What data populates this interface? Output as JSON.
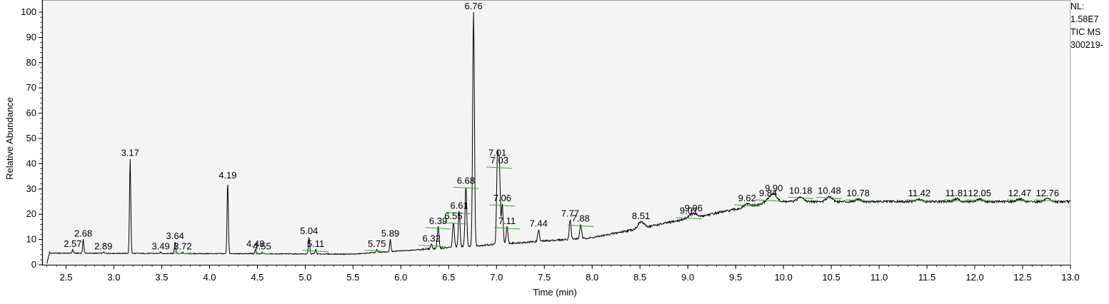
{
  "info": {
    "nl_label": "NL:",
    "nl_value": "1.58E7",
    "trace_type": "TIC MS",
    "file_name": "300219-"
  },
  "chart_data": {
    "type": "line",
    "title": "",
    "xlabel": "Time (min)",
    "ylabel": "Relative Abundance",
    "xlim": [
      2.25,
      13.0
    ],
    "ylim": [
      0,
      100
    ],
    "x_ticks": [
      "2.5",
      "3.0",
      "3.5",
      "4.0",
      "4.5",
      "5.0",
      "5.5",
      "6.0",
      "6.5",
      "7.0",
      "7.5",
      "8.0",
      "8.5",
      "9.0",
      "9.5",
      "10.0",
      "10.5",
      "11.0",
      "11.5",
      "12.0",
      "12.5",
      "13.0"
    ],
    "y_ticks": [
      "0",
      "10",
      "20",
      "30",
      "40",
      "50",
      "60",
      "70",
      "80",
      "90",
      "100"
    ],
    "grid": false,
    "color": "#000000",
    "peaks": [
      {
        "rt": 2.57,
        "label": "2.57",
        "height": 6
      },
      {
        "rt": 2.68,
        "label": "2.68",
        "height": 10
      },
      {
        "rt": 2.89,
        "label": "2.89",
        "height": 5
      },
      {
        "rt": 3.17,
        "label": "3.17",
        "height": 42
      },
      {
        "rt": 3.49,
        "label": "3.49",
        "height": 5
      },
      {
        "rt": 3.64,
        "label": "3.64",
        "height": 9
      },
      {
        "rt": 3.72,
        "label": "3.72",
        "height": 5
      },
      {
        "rt": 4.19,
        "label": "4.19",
        "height": 33
      },
      {
        "rt": 4.48,
        "label": "4.48",
        "height": 6
      },
      {
        "rt": 4.55,
        "label": "4.55",
        "height": 5
      },
      {
        "rt": 5.04,
        "label": "5.04",
        "height": 11
      },
      {
        "rt": 5.11,
        "label": "5.11",
        "height": 6
      },
      {
        "rt": 5.75,
        "label": "5.75",
        "height": 6
      },
      {
        "rt": 5.89,
        "label": "5.89",
        "height": 10
      },
      {
        "rt": 6.32,
        "label": "6.32",
        "height": 8
      },
      {
        "rt": 6.39,
        "label": "6.39",
        "height": 15
      },
      {
        "rt": 6.55,
        "label": "6.55",
        "height": 17
      },
      {
        "rt": 6.61,
        "label": "6.61",
        "height": 21
      },
      {
        "rt": 6.68,
        "label": "6.68",
        "height": 31
      },
      {
        "rt": 6.76,
        "label": "6.76",
        "height": 100
      },
      {
        "rt": 7.01,
        "label": "7.01",
        "height": 42
      },
      {
        "rt": 7.03,
        "label": "7.03",
        "height": 39
      },
      {
        "rt": 7.06,
        "label": "7.06",
        "height": 24
      },
      {
        "rt": 7.11,
        "label": "7.11",
        "height": 15
      },
      {
        "rt": 7.44,
        "label": "7.44",
        "height": 14
      },
      {
        "rt": 7.77,
        "label": "7.77",
        "height": 18
      },
      {
        "rt": 7.88,
        "label": "7.88",
        "height": 16
      },
      {
        "rt": 8.51,
        "label": "8.51",
        "height": 17
      },
      {
        "rt": 9.01,
        "label": "9.01",
        "height": 19
      },
      {
        "rt": 9.06,
        "label": "9.06",
        "height": 20
      },
      {
        "rt": 9.62,
        "label": "9.62",
        "height": 24
      },
      {
        "rt": 9.84,
        "label": "9.84",
        "height": 26
      },
      {
        "rt": 9.9,
        "label": "9.90",
        "height": 28
      },
      {
        "rt": 10.18,
        "label": "10.18",
        "height": 27
      },
      {
        "rt": 10.48,
        "label": "10.48",
        "height": 27
      },
      {
        "rt": 10.78,
        "label": "10.78",
        "height": 26
      },
      {
        "rt": 11.42,
        "label": "11.42",
        "height": 26
      },
      {
        "rt": 11.81,
        "label": "11.81",
        "height": 26
      },
      {
        "rt": 12.05,
        "label": "12.05",
        "height": 26
      },
      {
        "rt": 12.47,
        "label": "12.47",
        "height": 26
      },
      {
        "rt": 12.76,
        "label": "12.76",
        "height": 26
      }
    ]
  }
}
